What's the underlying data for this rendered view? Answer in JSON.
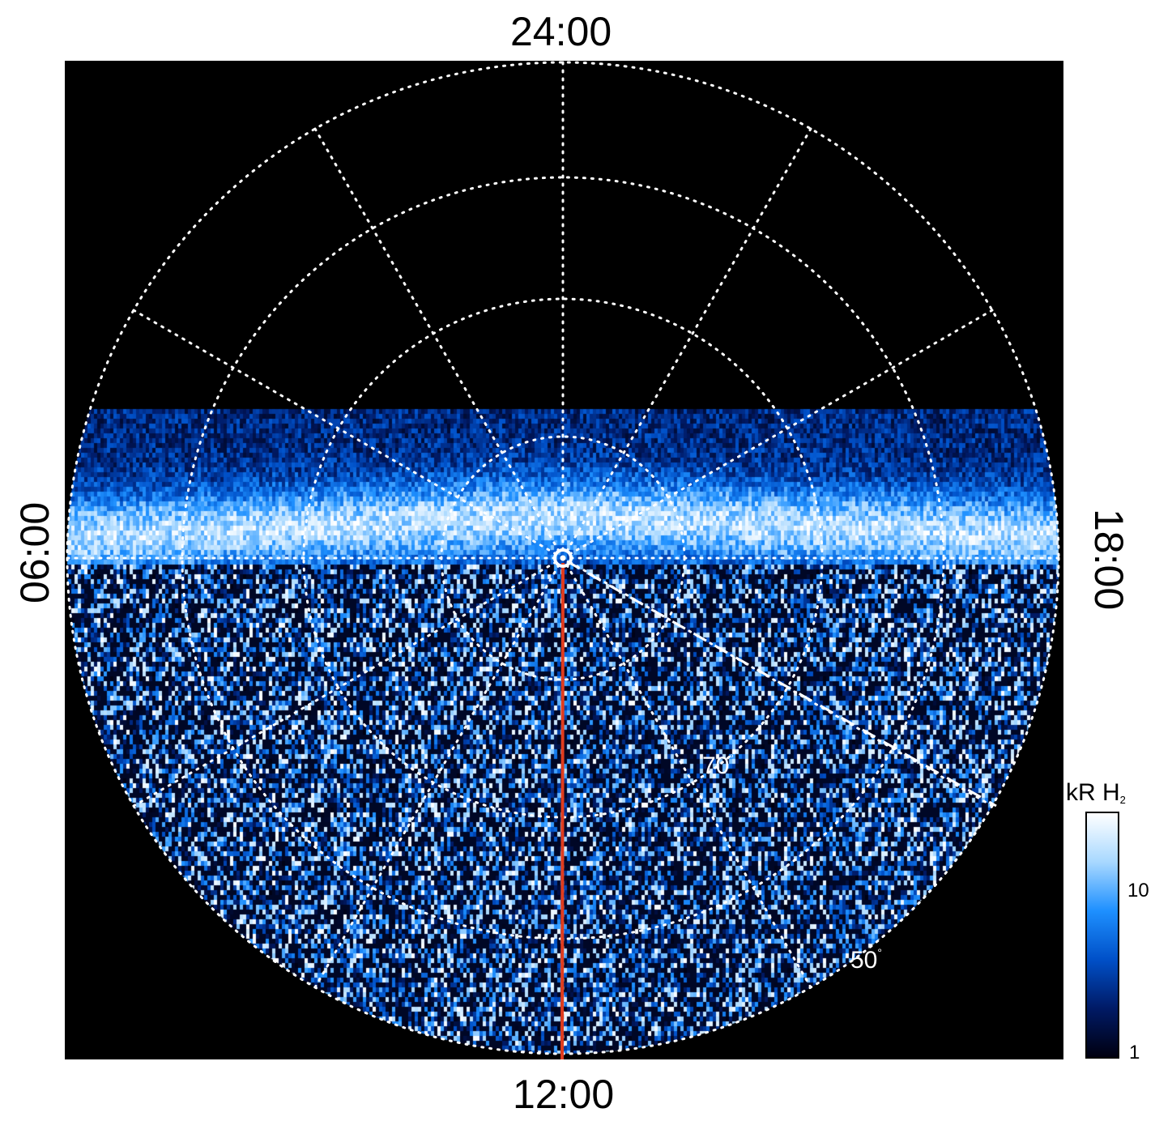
{
  "time_labels": {
    "top": "24:00",
    "bottom": "12:00",
    "left": "06:00",
    "right": "18:00"
  },
  "lat_labels": [
    {
      "text": "70",
      "unit": "°"
    },
    {
      "text": "50",
      "unit": "°"
    }
  ],
  "colorbar": {
    "title": "kR H",
    "title_sub": "2",
    "ticks": [
      "10",
      "1"
    ],
    "colors": [
      "#000010",
      "#001a66",
      "#0050c8",
      "#1e90ff",
      "#a8d8ff",
      "#ffffff"
    ]
  },
  "colors": {
    "background": "#000000",
    "grid": "#ffffff",
    "trajectory": "#e03c1e"
  },
  "subject": "polar projection of auroral H2 emission with dotted latitude/local-time grid"
}
